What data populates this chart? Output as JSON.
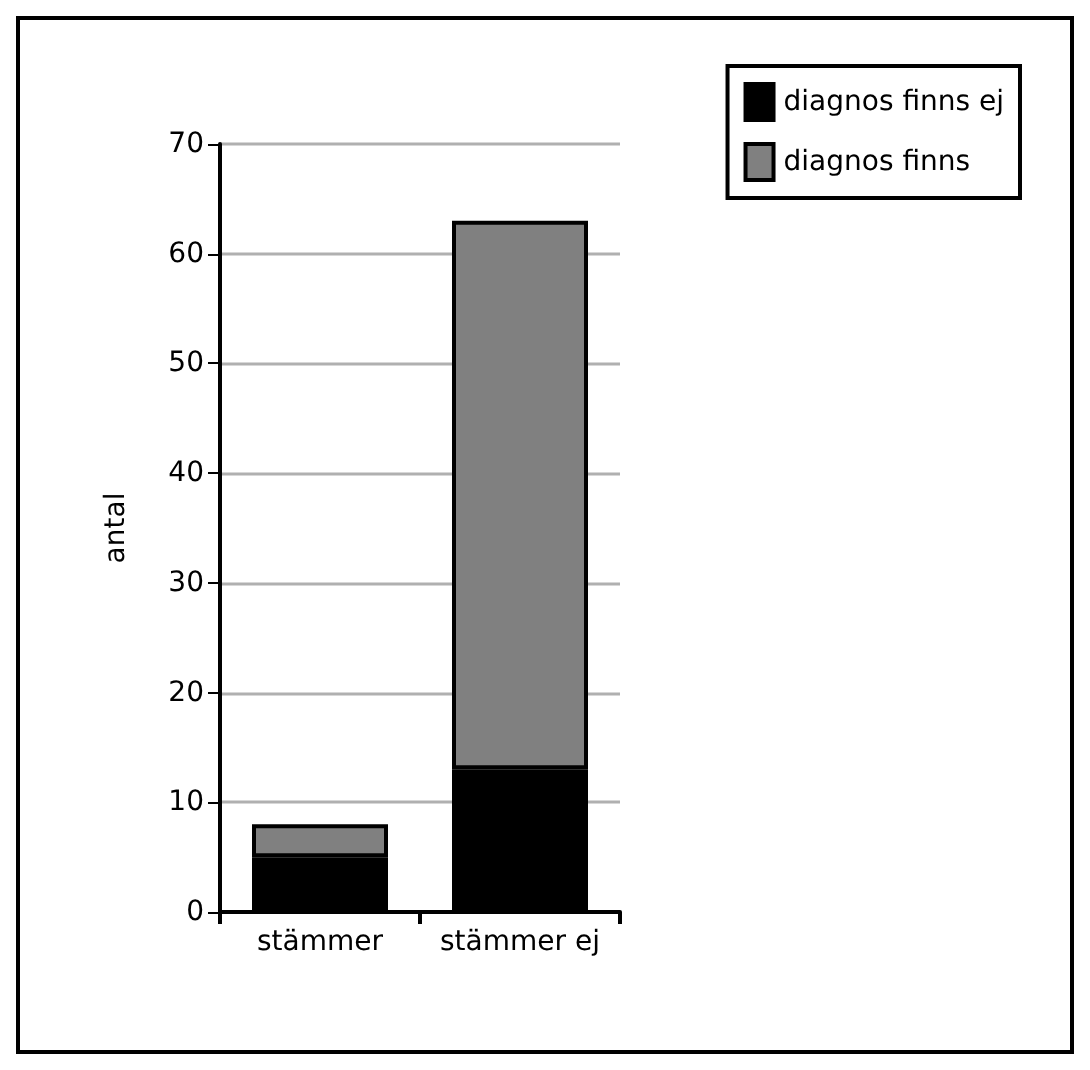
{
  "chart_data": {
    "type": "bar",
    "stacked": true,
    "ylabel": "antal",
    "categories": [
      "stämmer",
      "stämmer ej"
    ],
    "series": [
      {
        "name": "diagnos finns ej",
        "color": "#000000",
        "values": [
          5,
          13
        ]
      },
      {
        "name": "diagnos finns",
        "color": "#808080",
        "values": [
          3,
          50
        ]
      }
    ],
    "ylim": [
      0,
      70
    ],
    "yticks": [
      0,
      10,
      20,
      30,
      40,
      50,
      60,
      70
    ],
    "grid": "y",
    "legend": "top right"
  }
}
